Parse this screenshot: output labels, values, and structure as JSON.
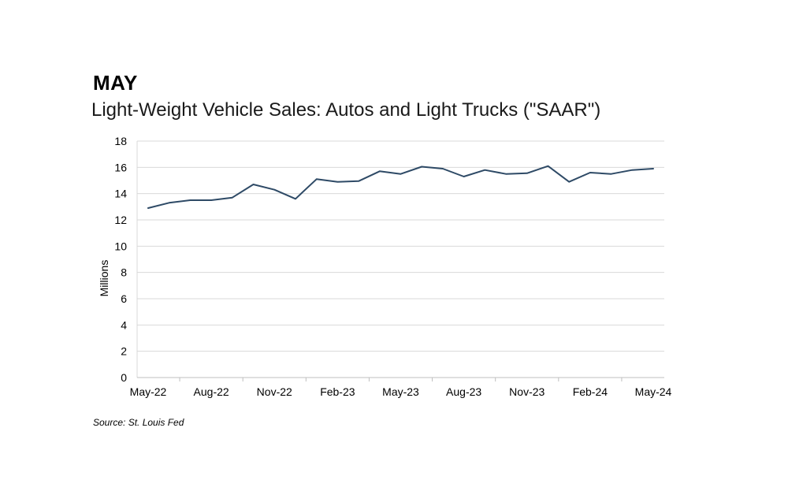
{
  "header": {
    "month": "MAY"
  },
  "source": "Source: St. Louis Fed",
  "chart_data": {
    "type": "line",
    "title": "Light-Weight Vehicle Sales: Autos and Light Trucks (\"SAAR\")",
    "xlabel": "",
    "ylabel": "Millions",
    "ylim": [
      0,
      18
    ],
    "yticks": [
      0,
      2,
      4,
      6,
      8,
      10,
      12,
      14,
      16,
      18
    ],
    "grid": true,
    "x": [
      "May-22",
      "Jun-22",
      "Jul-22",
      "Aug-22",
      "Sep-22",
      "Oct-22",
      "Nov-22",
      "Dec-22",
      "Jan-23",
      "Feb-23",
      "Mar-23",
      "Apr-23",
      "May-23",
      "Jun-23",
      "Jul-23",
      "Aug-23",
      "Sep-23",
      "Oct-23",
      "Nov-23",
      "Dec-23",
      "Jan-24",
      "Feb-24",
      "Mar-24",
      "Apr-24",
      "May-24"
    ],
    "xtick_labels": [
      "May-22",
      "Aug-22",
      "Nov-22",
      "Feb-23",
      "May-23",
      "Aug-23",
      "Nov-23",
      "Feb-24",
      "May-24"
    ],
    "series": [
      {
        "name": "Light-Weight Vehicle Sales",
        "color": "#2e4a66",
        "values": [
          12.9,
          13.3,
          13.5,
          13.5,
          13.7,
          14.7,
          14.3,
          13.6,
          15.1,
          14.9,
          14.95,
          15.7,
          15.5,
          16.05,
          15.9,
          15.3,
          15.8,
          15.5,
          15.55,
          16.1,
          14.9,
          15.6,
          15.5,
          15.8,
          15.9
        ]
      }
    ]
  }
}
